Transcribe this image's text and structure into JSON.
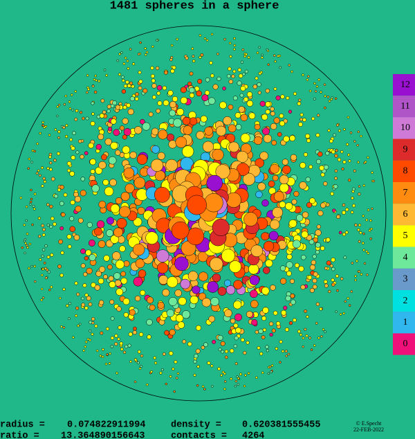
{
  "title": "1481 spheres in a sphere",
  "legend": [
    {
      "label": "12",
      "color": "#9a10d0"
    },
    {
      "label": "11",
      "color": "#b055c8"
    },
    {
      "label": "10",
      "color": "#d07ad8"
    },
    {
      "label": "9",
      "color": "#dd2a2a"
    },
    {
      "label": "8",
      "color": "#ff4a00"
    },
    {
      "label": "7",
      "color": "#ff8c10"
    },
    {
      "label": "6",
      "color": "#ffb833"
    },
    {
      "label": "5",
      "color": "#ffff00"
    },
    {
      "label": "4",
      "color": "#6ee89a"
    },
    {
      "label": "3",
      "color": "#6a9acb"
    },
    {
      "label": "2",
      "color": "#00e0e0"
    },
    {
      "label": "1",
      "color": "#30b8ee"
    },
    {
      "label": "0",
      "color": "#f0107a"
    }
  ],
  "stats": [
    {
      "label": "radius =",
      "value": "0.074822911994"
    },
    {
      "label": "density  =",
      "value": "0.620381555455"
    },
    {
      "label": "ratio  =",
      "value": "13.364890156643"
    },
    {
      "label": "contacts =",
      "value": "4264"
    }
  ],
  "credit": "© E.Specht",
  "date": "22-FEB-2022"
}
